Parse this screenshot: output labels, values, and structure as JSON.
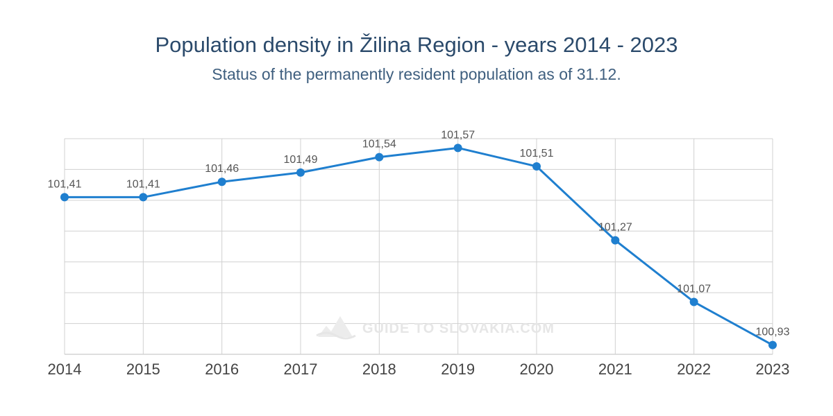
{
  "chart_data": {
    "type": "line",
    "title": "Population density in Žilina Region - years 2014 - 2023",
    "subtitle": "Status of the permanently resident population as of 31.12.",
    "x": [
      "2014",
      "2015",
      "2016",
      "2017",
      "2018",
      "2019",
      "2020",
      "2021",
      "2022",
      "2023"
    ],
    "series": [
      {
        "values": [
          101.41,
          101.41,
          101.46,
          101.49,
          101.54,
          101.57,
          101.51,
          101.27,
          101.07,
          100.93
        ],
        "labels": [
          "101,41",
          "101,41",
          "101,46",
          "101,49",
          "101,54",
          "101,57",
          "101,51",
          "101,27",
          "101,07",
          "100,93"
        ]
      }
    ],
    "xlabel": "",
    "ylabel": "",
    "ylim": [
      100.9,
      101.6
    ],
    "y_ticks_shown": false,
    "grid": true,
    "color": "#1f7fcf"
  },
  "watermark": "GUIDE TO SLOVAKIA.COM"
}
